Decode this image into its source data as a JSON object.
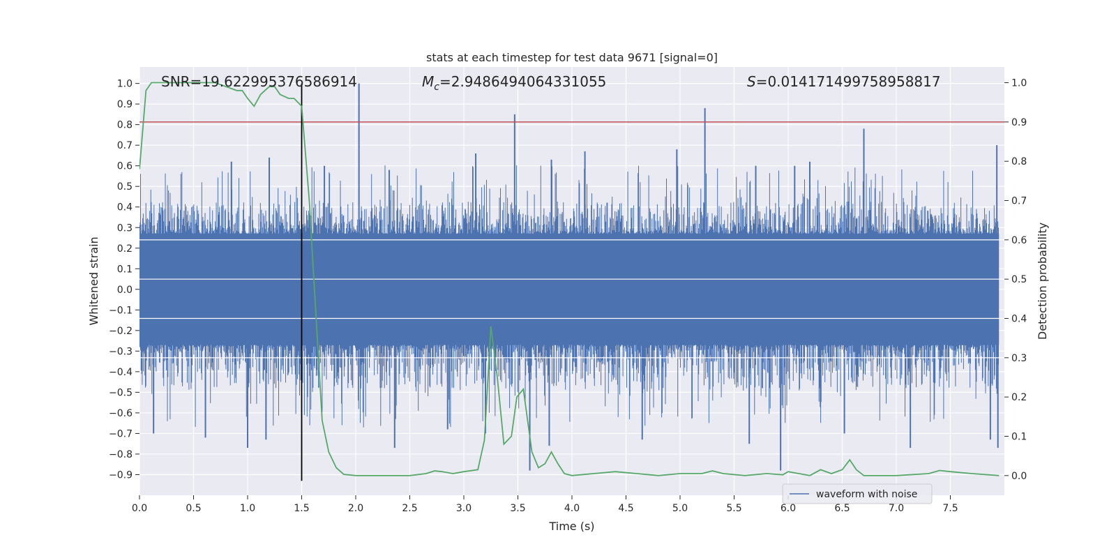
{
  "chart_data": {
    "type": "line",
    "title": "stats at each timestep for test data 9671 [signal=0]",
    "xlabel": "Time (s)",
    "ylabel_left": "Whitened strain",
    "ylabel_right": "Detection probability",
    "xlim": [
      0,
      8
    ],
    "ylim_left": [
      -1.0,
      1.08
    ],
    "ylim_right": [
      -0.05,
      1.04
    ],
    "xticks": [
      0.0,
      0.5,
      1.0,
      1.5,
      2.0,
      2.5,
      3.0,
      3.5,
      4.0,
      4.5,
      5.0,
      5.5,
      6.0,
      6.5,
      7.0,
      7.5
    ],
    "xtick_labels": [
      "0.0",
      "0.5",
      "1.0",
      "1.5",
      "2.0",
      "2.5",
      "3.0",
      "3.5",
      "4.0",
      "4.5",
      "5.0",
      "5.5",
      "6.0",
      "6.5",
      "7.0",
      "7.5"
    ],
    "yticks_left": [
      1.0,
      0.9,
      0.8,
      0.7,
      0.6,
      0.5,
      0.4,
      0.3,
      0.2,
      0.1,
      0.0,
      -0.1,
      -0.2,
      -0.3,
      -0.4,
      -0.5,
      -0.6,
      -0.7,
      -0.8,
      -0.9
    ],
    "ytick_labels_left": [
      "1.0",
      "0.9",
      "0.8",
      "0.7",
      "0.6",
      "0.5",
      "0.4",
      "0.3",
      "0.2",
      "0.1",
      "0.0",
      "−0.1",
      "−0.2",
      "−0.3",
      "−0.4",
      "−0.5",
      "−0.6",
      "−0.7",
      "−0.8",
      "−0.9"
    ],
    "yticks_right": [
      1.0,
      0.9,
      0.8,
      0.7,
      0.6,
      0.5,
      0.4,
      0.3,
      0.2,
      0.1,
      0.0
    ],
    "ytick_labels_right": [
      "1.0",
      "0.9",
      "0.8",
      "0.7",
      "0.6",
      "0.5",
      "0.4",
      "0.3",
      "0.2",
      "0.1",
      "0.0"
    ],
    "grid": true,
    "legend": {
      "position": "lower-right",
      "entries": [
        "waveform with noise"
      ]
    },
    "annotations": {
      "snr": "SNR=19.622995376586914",
      "mc_symbol": "M",
      "mc_sub": "c",
      "mc_value": "=2.9486494064331055",
      "s_symbol": "S",
      "s_value": "=0.014171499758958817"
    },
    "threshold_line": {
      "y_right": 0.9,
      "color": "#c44e52"
    },
    "vertical_marker": {
      "x": 1.5,
      "color": "#000000"
    },
    "waveform": {
      "name": "waveform with noise",
      "color": "#4c72b0",
      "core_band": [
        -0.27,
        0.27
      ],
      "spikes_up": [
        [
          2.03,
          1.0
        ],
        [
          3.47,
          0.85
        ],
        [
          5.23,
          0.88
        ],
        [
          6.7,
          0.78
        ],
        [
          4.12,
          0.67
        ],
        [
          6.2,
          0.62
        ],
        [
          7.93,
          0.7
        ],
        [
          4.97,
          0.68
        ],
        [
          3.11,
          0.66
        ],
        [
          0.85,
          0.62
        ],
        [
          1.2,
          0.64
        ],
        [
          1.71,
          0.6
        ],
        [
          2.31,
          0.58
        ],
        [
          3.81,
          0.63
        ],
        [
          5.7,
          0.6
        ],
        [
          6.06,
          0.6
        ]
      ],
      "spikes_down": [
        [
          3.61,
          -0.88
        ],
        [
          5.93,
          -0.88
        ],
        [
          1.0,
          -0.77
        ],
        [
          2.36,
          -0.77
        ],
        [
          3.79,
          -0.76
        ],
        [
          5.64,
          -0.75
        ],
        [
          7.13,
          -0.77
        ],
        [
          7.94,
          -0.77
        ],
        [
          4.65,
          -0.73
        ],
        [
          1.17,
          -0.73
        ],
        [
          0.61,
          -0.72
        ],
        [
          3.2,
          -0.7
        ],
        [
          6.52,
          -0.7
        ],
        [
          7.87,
          -0.73
        ],
        [
          2.85,
          -0.68
        ],
        [
          0.13,
          -0.7
        ]
      ],
      "envelope_top": 0.45,
      "envelope_bottom": -0.52
    },
    "detection_probability": {
      "color": "#55a868",
      "x": [
        0.0,
        0.06,
        0.11,
        0.3,
        0.5,
        0.7,
        0.8,
        0.9,
        0.95,
        1.0,
        1.06,
        1.12,
        1.2,
        1.25,
        1.3,
        1.38,
        1.43,
        1.5,
        1.57,
        1.63,
        1.69,
        1.75,
        1.82,
        1.89,
        2.0,
        2.25,
        2.5,
        2.65,
        2.73,
        2.8,
        2.9,
        3.0,
        3.13,
        3.19,
        3.25,
        3.31,
        3.37,
        3.44,
        3.49,
        3.55,
        3.63,
        3.69,
        3.75,
        3.81,
        3.87,
        3.93,
        4.0,
        4.2,
        4.4,
        4.6,
        4.8,
        5.0,
        5.2,
        5.3,
        5.4,
        5.6,
        5.8,
        5.95,
        6.0,
        6.1,
        6.2,
        6.3,
        6.4,
        6.5,
        6.57,
        6.63,
        6.7,
        7.0,
        7.3,
        7.4,
        7.5,
        7.7,
        7.95
      ],
      "y": [
        0.78,
        0.98,
        1.0,
        1.0,
        1.0,
        1.0,
        0.99,
        0.98,
        0.98,
        0.96,
        0.94,
        0.97,
        0.99,
        0.99,
        0.97,
        0.96,
        0.96,
        0.94,
        0.7,
        0.42,
        0.14,
        0.06,
        0.02,
        0.003,
        0.0,
        0.0,
        0.0,
        0.005,
        0.012,
        0.01,
        0.005,
        0.01,
        0.015,
        0.09,
        0.38,
        0.25,
        0.08,
        0.1,
        0.2,
        0.22,
        0.06,
        0.02,
        0.03,
        0.06,
        0.03,
        0.005,
        0.0,
        0.005,
        0.01,
        0.005,
        0.0,
        0.005,
        0.005,
        0.012,
        0.005,
        0.0,
        0.005,
        0.002,
        0.01,
        0.005,
        0.0,
        0.015,
        0.005,
        0.015,
        0.04,
        0.015,
        0.0,
        0.0,
        0.005,
        0.013,
        0.01,
        0.005,
        0.0
      ]
    }
  }
}
